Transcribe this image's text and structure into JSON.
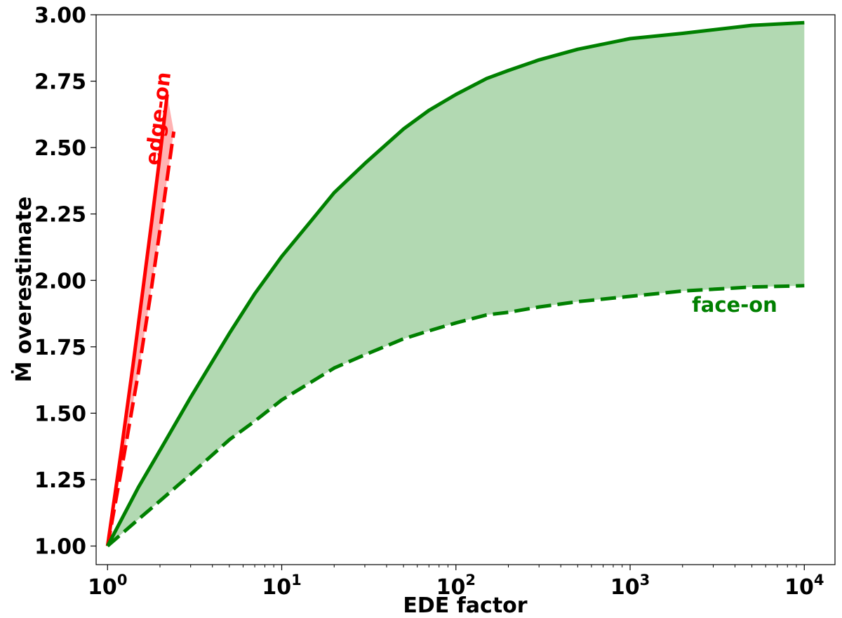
{
  "chart_data": {
    "type": "area",
    "xlabel": "EDE factor",
    "ylabel_symbol": "Ṁ",
    "ylabel_text": "overestimate",
    "x_scale": "log",
    "xlim": [
      0.86,
      15000
    ],
    "ylim": [
      0.93,
      3.0
    ],
    "grid": false,
    "xticks": [
      {
        "value": 1,
        "base": "10",
        "exp": "0"
      },
      {
        "value": 10,
        "base": "10",
        "exp": "1"
      },
      {
        "value": 100,
        "base": "10",
        "exp": "2"
      },
      {
        "value": 1000,
        "base": "10",
        "exp": "3"
      },
      {
        "value": 10000,
        "base": "10",
        "exp": "4"
      }
    ],
    "yticks": [
      "1.00",
      "1.25",
      "1.50",
      "1.75",
      "2.00",
      "2.25",
      "2.50",
      "2.75",
      "3.00"
    ],
    "series": [
      {
        "group": "edge-on",
        "style": "solid",
        "color": "#ff0000",
        "x": [
          1.0,
          1.2,
          1.4,
          1.6,
          1.8,
          2.0,
          2.2
        ],
        "y": [
          1.0,
          1.36,
          1.68,
          1.97,
          2.23,
          2.47,
          2.7
        ]
      },
      {
        "group": "edge-on",
        "style": "dashed",
        "color": "#ff0000",
        "x": [
          1.0,
          1.25,
          1.5,
          1.75,
          2.0,
          2.25,
          2.4
        ],
        "y": [
          1.0,
          1.35,
          1.65,
          1.93,
          2.19,
          2.43,
          2.56
        ]
      },
      {
        "group": "face-on",
        "style": "solid",
        "color": "#008000",
        "x": [
          1,
          1.5,
          2,
          3,
          5,
          7,
          10,
          15,
          20,
          30,
          50,
          70,
          100,
          150,
          200,
          300,
          500,
          1000,
          2000,
          5000,
          10000
        ],
        "y": [
          1.0,
          1.22,
          1.36,
          1.56,
          1.8,
          1.95,
          2.09,
          2.23,
          2.33,
          2.44,
          2.57,
          2.64,
          2.7,
          2.76,
          2.79,
          2.83,
          2.87,
          2.91,
          2.93,
          2.96,
          2.97
        ]
      },
      {
        "group": "face-on",
        "style": "dashed",
        "color": "#008000",
        "x": [
          1,
          1.5,
          2,
          3,
          5,
          7,
          10,
          15,
          20,
          30,
          50,
          70,
          100,
          150,
          200,
          300,
          500,
          1000,
          2000,
          5000,
          10000
        ],
        "y": [
          1.0,
          1.1,
          1.17,
          1.27,
          1.4,
          1.47,
          1.55,
          1.62,
          1.67,
          1.72,
          1.78,
          1.81,
          1.84,
          1.87,
          1.88,
          1.9,
          1.92,
          1.94,
          1.96,
          1.975,
          1.98
        ]
      }
    ],
    "annotations": [
      {
        "text": "edge-on",
        "color": "#ff0000",
        "rotation_deg": -83
      },
      {
        "text": "face-on",
        "color": "#008000",
        "rotation_deg": 0
      }
    ],
    "fills": {
      "edge_on_color": "#ff0000",
      "face_on_color": "#008000"
    }
  }
}
